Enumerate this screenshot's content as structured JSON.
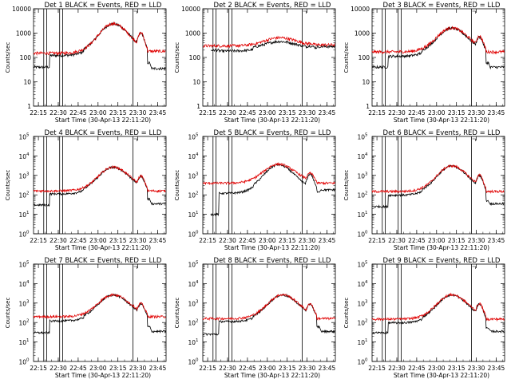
{
  "chart_data": [
    {
      "type": "line",
      "title": "Det 1 BLACK = Events, RED = LLD",
      "ylabel": "Counts/sec",
      "xlabel": "Start Time (30-Apr-13 22:11:20)",
      "x_ticks": [
        "22:15",
        "22:30",
        "22:45",
        "23:00",
        "23:15",
        "23:30",
        "23:45"
      ],
      "y_scale": "log",
      "y_tick_style": "plain",
      "y_ticks": [
        "1",
        "10",
        "100",
        "1000",
        "10000"
      ],
      "ylim": [
        1,
        10000
      ],
      "x_range_minutes": [
        0,
        100
      ],
      "vertical_lines_minutes": [
        7.7,
        10.0,
        19.7,
        22.0,
        75.0
      ],
      "series": [
        {
          "name": "Events",
          "color": "#000000",
          "baseline": 150,
          "start_level": 40,
          "pre_level": 65,
          "peak": 2400,
          "peak_time": 60,
          "hump": 1000,
          "drop_level": 60,
          "end_level": 35,
          "data_start": 0.0
        },
        {
          "name": "LLD",
          "color": "#e00000",
          "baseline": 150,
          "peak": 2450,
          "peak_time": 60,
          "hump": 1050,
          "tail_level": 180
        }
      ]
    },
    {
      "type": "line",
      "title": "Det 2 BLACK = Events, RED = LLD",
      "ylabel": "Counts/sec",
      "xlabel": "Start Time (30-Apr-13 22:11:20)",
      "x_ticks": [
        "22:15",
        "22:30",
        "22:45",
        "23:00",
        "23:15",
        "23:30",
        "23:45"
      ],
      "y_scale": "log",
      "y_tick_style": "plain",
      "y_ticks": [
        "1",
        "10",
        "100",
        "1000",
        "10000"
      ],
      "ylim": [
        1,
        10000
      ],
      "x_range_minutes": [
        0,
        100
      ],
      "vertical_lines_minutes": [
        7.7,
        10.0,
        19.7,
        22.0,
        75.0
      ],
      "series": [
        {
          "name": "Events",
          "color": "#000000",
          "baseline": 230,
          "start_level": 200,
          "pre_level": 220,
          "peak": 450,
          "peak_time": 58,
          "hump": 300,
          "drop_level": 280,
          "end_level": 280,
          "data_start": 6.0
        },
        {
          "name": "LLD",
          "color": "#e00000",
          "baseline": 300,
          "peak": 650,
          "peak_time": 58,
          "hump": 380,
          "tail_level": 330
        }
      ]
    },
    {
      "type": "line",
      "title": "Det 3 BLACK = Events, RED = LLD",
      "ylabel": "Counts/sec",
      "xlabel": "Start Time (30-Apr-13 22:11:20)",
      "x_ticks": [
        "22:15",
        "22:30",
        "22:45",
        "23:00",
        "23:15",
        "23:30",
        "23:45"
      ],
      "y_scale": "log",
      "y_tick_style": "plain",
      "y_ticks": [
        "1",
        "10",
        "100",
        "1000",
        "10000"
      ],
      "ylim": [
        1,
        10000
      ],
      "x_range_minutes": [
        0,
        100
      ],
      "vertical_lines_minutes": [
        7.7,
        10.0,
        19.7,
        22.0,
        75.0
      ],
      "series": [
        {
          "name": "Events",
          "color": "#000000",
          "baseline": 140,
          "start_level": 40,
          "pre_level": 65,
          "peak": 1600,
          "peak_time": 60,
          "hump": 700,
          "drop_level": 60,
          "end_level": 40,
          "data_start": 0.0
        },
        {
          "name": "LLD",
          "color": "#e00000",
          "baseline": 170,
          "peak": 1650,
          "peak_time": 60,
          "hump": 750,
          "tail_level": 170
        }
      ]
    },
    {
      "type": "line",
      "title": "Det 4 BLACK = Events, RED = LLD",
      "ylabel": "Counts/sec",
      "xlabel": "Start Time (30-Apr-13 22:11:20)",
      "x_ticks": [
        "22:15",
        "22:30",
        "22:45",
        "23:00",
        "23:15",
        "23:30",
        "23:45"
      ],
      "y_scale": "log",
      "y_tick_style": "power",
      "y_ticks": [
        "10",
        "10",
        "10",
        "10",
        "10",
        "10"
      ],
      "y_exponents": [
        "0",
        "1",
        "2",
        "3",
        "4",
        "5"
      ],
      "ylim": [
        1,
        100000
      ],
      "x_range_minutes": [
        0,
        100
      ],
      "vertical_lines_minutes": [
        7.7,
        10.0,
        19.7,
        22.0,
        75.0
      ],
      "series": [
        {
          "name": "Events",
          "color": "#000000",
          "baseline": 140,
          "start_level": 30,
          "pre_level": 70,
          "peak": 2600,
          "peak_time": 60,
          "hump": 900,
          "drop_level": 60,
          "end_level": 35,
          "data_start": 0.0
        },
        {
          "name": "LLD",
          "color": "#e00000",
          "baseline": 160,
          "peak": 2700,
          "peak_time": 60,
          "hump": 950,
          "tail_level": 160
        }
      ]
    },
    {
      "type": "line",
      "title": "Det 5 BLACK = Events, RED = LLD",
      "ylabel": "Counts/sec",
      "xlabel": "Start Time (30-Apr-13 22:11:20)",
      "x_ticks": [
        "22:15",
        "22:30",
        "22:45",
        "23:00",
        "23:15",
        "23:30",
        "23:45"
      ],
      "y_scale": "log",
      "y_tick_style": "power",
      "y_ticks": [
        "10",
        "10",
        "10",
        "10",
        "10",
        "10"
      ],
      "y_exponents": [
        "0",
        "1",
        "2",
        "3",
        "4",
        "5"
      ],
      "ylim": [
        1,
        100000
      ],
      "x_range_minutes": [
        0,
        100
      ],
      "vertical_lines_minutes": [
        7.7,
        10.0,
        19.7,
        22.0,
        75.0
      ],
      "series": [
        {
          "name": "Events",
          "color": "#000000",
          "baseline": 150,
          "start_level": 10,
          "pre_level": 60,
          "peak": 3500,
          "peak_time": 57,
          "hump": 1200,
          "drop_level": 150,
          "end_level": 180,
          "data_start": 6.0
        },
        {
          "name": "LLD",
          "color": "#e00000",
          "baseline": 400,
          "peak": 3800,
          "peak_time": 57,
          "hump": 1300,
          "tail_level": 400
        }
      ]
    },
    {
      "type": "line",
      "title": "Det 6 BLACK = Events, RED = LLD",
      "ylabel": "Counts/sec",
      "xlabel": "Start Time (30-Apr-13 22:11:20)",
      "x_ticks": [
        "22:15",
        "22:30",
        "22:45",
        "23:00",
        "23:15",
        "23:30",
        "23:45"
      ],
      "y_scale": "log",
      "y_tick_style": "power",
      "y_ticks": [
        "10",
        "10",
        "10",
        "10",
        "10",
        "10"
      ],
      "y_exponents": [
        "0",
        "1",
        "2",
        "3",
        "4",
        "5"
      ],
      "ylim": [
        1,
        100000
      ],
      "x_range_minutes": [
        0,
        100
      ],
      "vertical_lines_minutes": [
        7.7,
        10.0,
        19.7,
        22.0,
        75.0
      ],
      "series": [
        {
          "name": "Events",
          "color": "#000000",
          "baseline": 120,
          "start_level": 25,
          "pre_level": 60,
          "peak": 3000,
          "peak_time": 60,
          "hump": 1000,
          "drop_level": 50,
          "end_level": 35,
          "data_start": 0.0
        },
        {
          "name": "LLD",
          "color": "#e00000",
          "baseline": 150,
          "peak": 3100,
          "peak_time": 60,
          "hump": 1050,
          "tail_level": 150
        }
      ]
    },
    {
      "type": "line",
      "title": "Det 7 BLACK = Events, RED = LLD",
      "ylabel": "Counts/sec",
      "xlabel": "Start Time (30-Apr-13 22:11:20)",
      "x_ticks": [
        "22:15",
        "22:30",
        "22:45",
        "23:00",
        "23:15",
        "23:30",
        "23:45"
      ],
      "y_scale": "log",
      "y_tick_style": "power",
      "y_ticks": [
        "10",
        "10",
        "10",
        "10",
        "10",
        "10"
      ],
      "y_exponents": [
        "0",
        "1",
        "2",
        "3",
        "4",
        "5"
      ],
      "ylim": [
        1,
        100000
      ],
      "x_range_minutes": [
        0,
        100
      ],
      "vertical_lines_minutes": [
        7.7,
        10.0,
        19.7,
        22.0,
        75.0
      ],
      "series": [
        {
          "name": "Events",
          "color": "#000000",
          "baseline": 150,
          "start_level": 30,
          "pre_level": 70,
          "peak": 2600,
          "peak_time": 60,
          "hump": 900,
          "drop_level": 60,
          "end_level": 35,
          "data_start": 0.0
        },
        {
          "name": "LLD",
          "color": "#e00000",
          "baseline": 200,
          "peak": 2700,
          "peak_time": 60,
          "hump": 950,
          "tail_level": 200
        }
      ]
    },
    {
      "type": "line",
      "title": "Det 8 BLACK = Events, RED = LLD",
      "ylabel": "Counts/sec",
      "xlabel": "Start Time (30-Apr-13 22:11:20)",
      "x_ticks": [
        "22:15",
        "22:30",
        "22:45",
        "23:00",
        "23:15",
        "23:30",
        "23:45"
      ],
      "y_scale": "log",
      "y_tick_style": "power",
      "y_ticks": [
        "10",
        "10",
        "10",
        "10",
        "10",
        "10"
      ],
      "y_exponents": [
        "0",
        "1",
        "2",
        "3",
        "4",
        "5"
      ],
      "ylim": [
        1,
        100000
      ],
      "x_range_minutes": [
        0,
        100
      ],
      "vertical_lines_minutes": [
        7.7,
        10.0,
        19.7,
        22.0,
        75.0
      ],
      "series": [
        {
          "name": "Events",
          "color": "#000000",
          "baseline": 140,
          "start_level": 25,
          "pre_level": 70,
          "peak": 2600,
          "peak_time": 60,
          "hump": 900,
          "drop_level": 60,
          "end_level": 35,
          "data_start": 0.0
        },
        {
          "name": "LLD",
          "color": "#e00000",
          "baseline": 160,
          "peak": 2700,
          "peak_time": 60,
          "hump": 950,
          "tail_level": 160
        }
      ]
    },
    {
      "type": "line",
      "title": "Det 9 BLACK = Events, RED = LLD",
      "ylabel": "Counts/sec",
      "xlabel": "Start Time (30-Apr-13 22:11:20)",
      "x_ticks": [
        "22:15",
        "22:30",
        "22:45",
        "23:00",
        "23:15",
        "23:30",
        "23:45"
      ],
      "y_scale": "log",
      "y_tick_style": "power",
      "y_ticks": [
        "10",
        "10",
        "10",
        "10",
        "10",
        "10"
      ],
      "y_exponents": [
        "0",
        "1",
        "2",
        "3",
        "4",
        "5"
      ],
      "ylim": [
        1,
        100000
      ],
      "x_range_minutes": [
        0,
        100
      ],
      "vertical_lines_minutes": [
        7.7,
        10.0,
        19.7,
        22.0,
        75.0
      ],
      "series": [
        {
          "name": "Events",
          "color": "#000000",
          "baseline": 120,
          "start_level": 30,
          "pre_level": 60,
          "peak": 2600,
          "peak_time": 60,
          "hump": 900,
          "drop_level": 50,
          "end_level": 35,
          "data_start": 0.0
        },
        {
          "name": "LLD",
          "color": "#e00000",
          "baseline": 150,
          "peak": 2700,
          "peak_time": 60,
          "hump": 950,
          "tail_level": 150
        }
      ]
    }
  ]
}
